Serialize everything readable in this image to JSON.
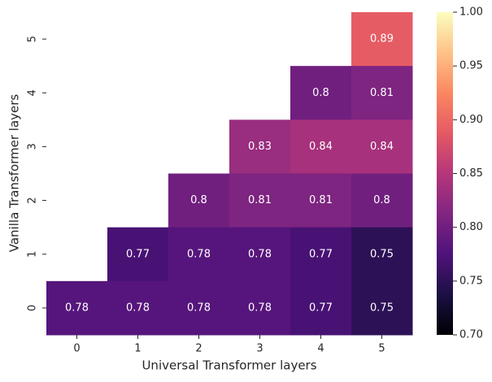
{
  "chart_data": {
    "type": "heatmap",
    "x_label": "Universal Transformer layers",
    "y_label": "Vanilla Transformer layers",
    "x_categories": [
      "0",
      "1",
      "2",
      "3",
      "4",
      "5"
    ],
    "y_categories": [
      "5",
      "4",
      "3",
      "2",
      "1",
      "0"
    ],
    "values": [
      [
        null,
        null,
        null,
        null,
        null,
        0.89
      ],
      [
        null,
        null,
        null,
        null,
        0.8,
        0.81
      ],
      [
        null,
        null,
        null,
        0.83,
        0.84,
        0.84
      ],
      [
        null,
        null,
        0.8,
        0.81,
        0.81,
        0.8
      ],
      [
        null,
        0.77,
        0.78,
        0.78,
        0.77,
        0.75
      ],
      [
        0.78,
        0.78,
        0.78,
        0.78,
        0.77,
        0.75
      ]
    ],
    "colormap": "magma",
    "clim": [
      0.7,
      1.0
    ],
    "cticks": [
      {
        "value": 0.7,
        "label": "0.70"
      },
      0.75,
      {
        "value": 0.8,
        "label": "0.80"
      },
      0.85,
      {
        "value": 0.9,
        "label": "0.90"
      },
      0.95,
      {
        "value": 1.0,
        "label": "1.00"
      }
    ]
  }
}
